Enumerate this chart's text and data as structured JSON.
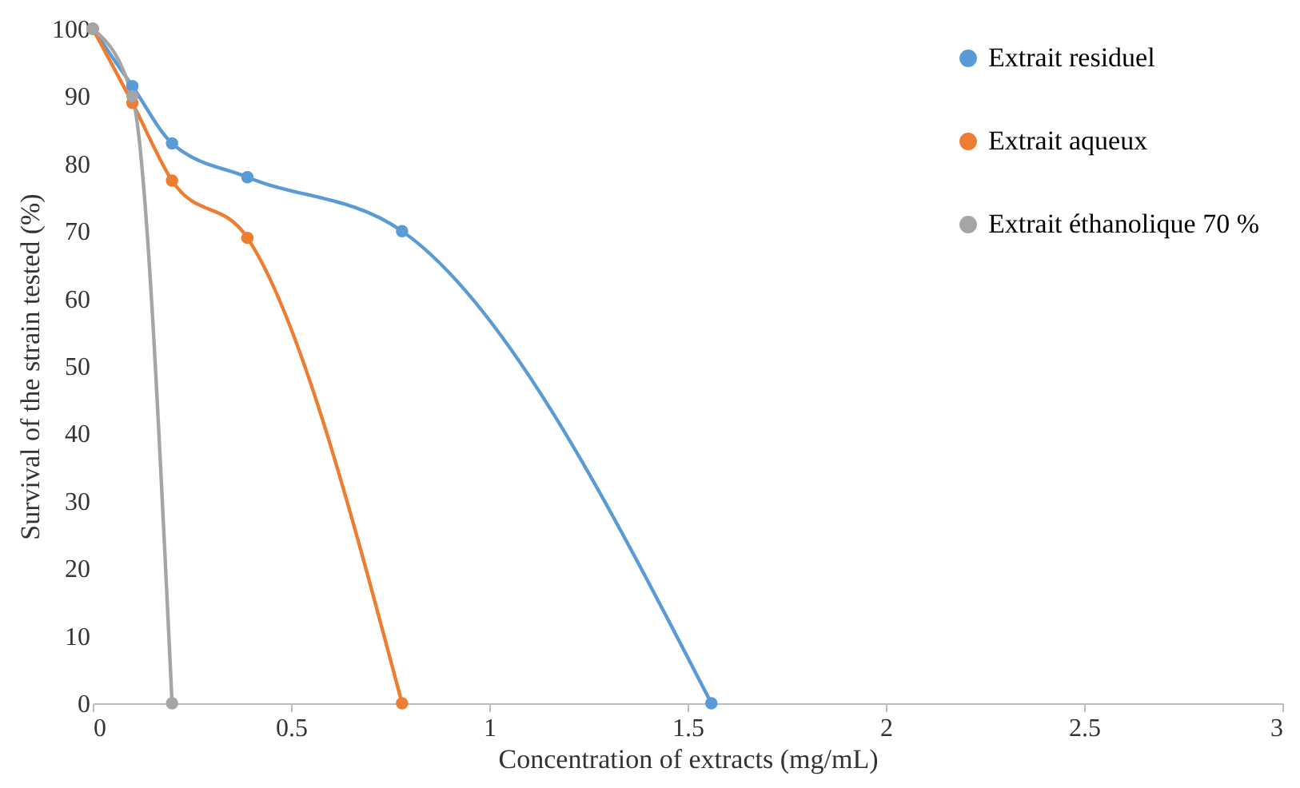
{
  "chart_data": {
    "type": "line",
    "xlabel": "Concentration of extracts (mg/mL)",
    "ylabel": "Survival  of the strain tested (%)",
    "series": [
      {
        "name": "Extrait residuel",
        "color": "#5b9bd5",
        "x": [
          0,
          0.1,
          0.2,
          0.39,
          0.78,
          1.56
        ],
        "values": [
          100,
          91.5,
          83,
          78,
          70,
          0
        ]
      },
      {
        "name": "Extrait aqueux",
        "color": "#ed7d31",
        "x": [
          0,
          0.1,
          0.2,
          0.39,
          0.78
        ],
        "values": [
          100,
          89,
          77.5,
          69,
          0
        ]
      },
      {
        "name": "Extrait éthanolique  70 %",
        "color": "#a5a5a5",
        "x": [
          0,
          0.1,
          0.2
        ],
        "values": [
          100,
          90,
          0
        ]
      }
    ],
    "xlim": [
      0,
      3
    ],
    "xticks": [
      0,
      0.5,
      1,
      1.5,
      2,
      2.5,
      3
    ],
    "ylim": [
      0,
      100
    ],
    "yticks": [
      0,
      10,
      20,
      30,
      40,
      50,
      60,
      70,
      80,
      90,
      100
    ],
    "grid": false,
    "legend": "top right",
    "marker": "circle",
    "line_style": "solid"
  }
}
